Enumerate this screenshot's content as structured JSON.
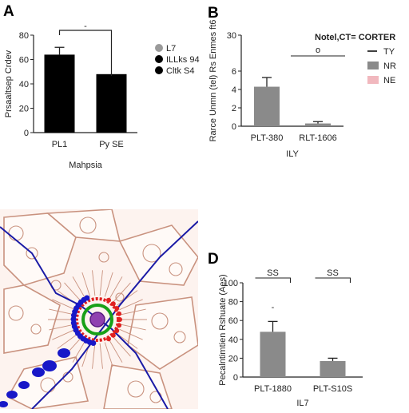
{
  "panels": {
    "A": {
      "label": "A"
    },
    "B": {
      "label": "B"
    },
    "D": {
      "label": "D"
    }
  },
  "chart_data": [
    {
      "panel": "A",
      "type": "bar",
      "categories": [
        "PL1",
        "Py SE"
      ],
      "values": [
        64,
        48
      ],
      "errors": [
        6,
        0
      ],
      "bar_color": "#000000",
      "ylim": [
        0,
        80
      ],
      "yticks": [
        0,
        20,
        40,
        60,
        80
      ],
      "ytick_labels": [
        "0",
        "20",
        "40",
        "60",
        "80"
      ],
      "ylabel": "Prsaaltsep Crdev",
      "xlabel": "Mahpsia",
      "bracket_label": "-",
      "legend": [
        {
          "label": "L7",
          "color": "#9a9a9a"
        },
        {
          "label": "ILLks 94",
          "color": "#000000"
        },
        {
          "label": "Cltk S4",
          "color": "#000000"
        }
      ]
    },
    {
      "panel": "B",
      "type": "bar",
      "categories": [
        "PLT-380",
        "RLT-1606"
      ],
      "values": [
        4.3,
        0.3
      ],
      "errors": [
        1.0,
        0.2
      ],
      "bar_color": "#8a8a8a",
      "ylim": [
        0,
        30
      ],
      "yticks": [
        0,
        2,
        4,
        6,
        30
      ],
      "ytick_labels": [
        "0",
        "2",
        "4",
        "6",
        "30"
      ],
      "ylabel": "Rarce Unmn (tel) Rs Enmes ft6",
      "xlabel": "ILY",
      "bracket_label": "o",
      "legend_title": "Notel,CT= CORTER",
      "legend": [
        {
          "label": "TY",
          "color": "#000000",
          "kind": "line"
        },
        {
          "label": "NR",
          "color": "#8a8a8a",
          "kind": "box"
        },
        {
          "label": "NE",
          "color": "#f1b8be",
          "kind": "box"
        }
      ]
    },
    {
      "panel": "D",
      "type": "bar",
      "categories": [
        "PLT-1880",
        "PLT-S10S"
      ],
      "values": [
        48,
        17
      ],
      "errors": [
        11,
        3
      ],
      "bar_color": "#8a8a8a",
      "ylim": [
        0,
        100
      ],
      "yticks": [
        0,
        20,
        40,
        60,
        80,
        100
      ],
      "ytick_labels": [
        "0",
        "20",
        "40",
        "60",
        "80",
        "100"
      ],
      "ylabel": "Pecalntimtien Rshuate (Aes)",
      "xlabel": "IL7",
      "bracket_labels": [
        "SS",
        "SS"
      ],
      "extra_mark": "-"
    }
  ],
  "micrograph": {
    "colors": {
      "background": "#fdf3ef",
      "membrane": "#c9927f",
      "line": "#1a1aa6",
      "red": "#e02020",
      "green": "#18a018",
      "blue": "#1818c8",
      "purple": "#9040b0"
    }
  }
}
